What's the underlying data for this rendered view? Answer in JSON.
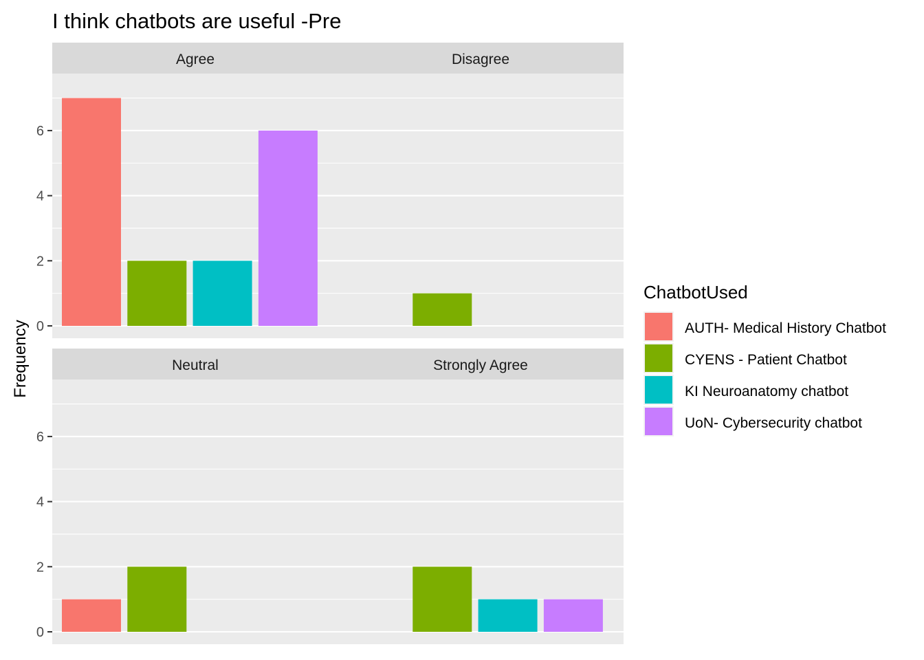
{
  "chart_data": {
    "type": "bar",
    "title": "I think chatbots are useful -Pre",
    "ylabel": "Frequency",
    "xlabel": "",
    "ylim": [
      0,
      7.35
    ],
    "yticks": [
      0,
      2,
      4,
      6
    ],
    "grid": true,
    "legend": {
      "title": "ChatbotUsed",
      "placement": "right"
    },
    "series": [
      {
        "name": "AUTH- Medical History Chatbot",
        "color": "#f8766d"
      },
      {
        "name": "CYENS - Patient Chatbot",
        "color": "#7cae00"
      },
      {
        "name": "KI Neuroanatomy chatbot",
        "color": "#00bfc4"
      },
      {
        "name": "UoN- Cybersecurity chatbot",
        "color": "#c77cff"
      }
    ],
    "facets": [
      {
        "label": "Agree",
        "values": [
          7,
          2,
          2,
          6
        ]
      },
      {
        "label": "Disagree",
        "values": [
          0,
          1,
          0,
          0
        ]
      },
      {
        "label": "Neutral",
        "values": [
          1,
          2,
          0,
          0
        ]
      },
      {
        "label": "Strongly Agree",
        "values": [
          0,
          2,
          1,
          1
        ]
      }
    ]
  }
}
